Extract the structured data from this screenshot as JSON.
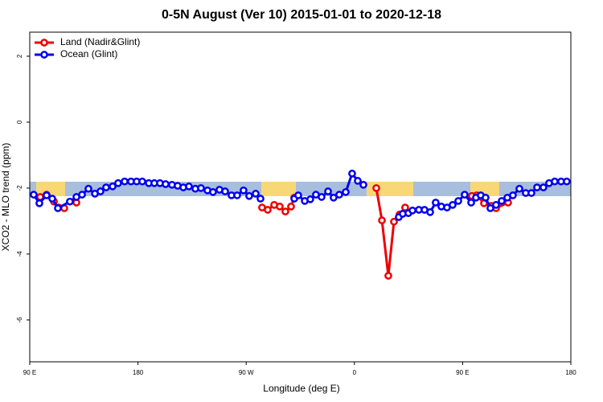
{
  "chart_data": {
    "type": "line",
    "title": "0-5N August (Ver 10)   2015-01-01 to 2020-12-18",
    "x_label": "Longitude (deg E)",
    "y_label": "XCO2 - MLO trend (ppm)",
    "xlim": [
      90,
      540
    ],
    "ylim": [
      -7.27,
      2.73
    ],
    "xticks": [
      {
        "value": 90,
        "label": "90 E"
      },
      {
        "value": 180,
        "label": "180"
      },
      {
        "value": 270,
        "label": "90 W"
      },
      {
        "value": 360,
        "label": "0"
      },
      {
        "value": 450,
        "label": "90 E"
      },
      {
        "value": 540,
        "label": "180"
      }
    ],
    "yticks": [
      2,
      0,
      -2,
      -4,
      -6
    ],
    "legend": "topleft",
    "series": [
      {
        "name": "Land (Nadir&Glint)",
        "color": "#ee0000",
        "x": [
          98.7,
          104.0,
          110.1,
          114.1,
          118.7,
          120,
          128.8,
          200,
          283.2,
          287.9,
          293.3,
          297.9,
          302.6,
          307.3,
          310.0,
          340,
          378.2,
          382.9,
          388.2,
          392.9,
          397.6,
          402.2,
          430,
          457.7,
          461.7,
          467.8,
          473.8,
          477.8,
          487.8
        ],
        "values": [
          -2.27,
          -2.2,
          -2.41,
          -2.59,
          -2.61,
          null,
          -2.44,
          null,
          -2.59,
          -2.66,
          -2.51,
          -2.56,
          -2.71,
          -2.56,
          -2.29,
          null,
          -2.0,
          -2.98,
          -4.66,
          -3.02,
          -2.8,
          -2.59,
          null,
          -2.24,
          -2.22,
          -2.46,
          -2.54,
          -2.61,
          -2.44
        ]
      },
      {
        "name": "Ocean (Glint)",
        "color": "#0000ee",
        "x": [
          93.3,
          98.0,
          104.0,
          108.7,
          113.4,
          123.4,
          128.8,
          133.5,
          138.8,
          144.2,
          148.8,
          153.5,
          158.9,
          163.5,
          168.9,
          174.2,
          178.9,
          183.6,
          189.0,
          193.6,
          198.3,
          203.0,
          208.3,
          213.0,
          217.7,
          222.4,
          227.7,
          232.4,
          237.8,
          242.4,
          247.8,
          252.5,
          257.8,
          262.5,
          267.8,
          272.5,
          277.9,
          281.9,
          300,
          310.0,
          313.3,
          318.7,
          323.3,
          328.0,
          332.7,
          338.1,
          342.7,
          347.4,
          352.8,
          358.1,
          362.8,
          367.5,
          380,
          396.9,
          400.2,
          404.9,
          408.3,
          413.6,
          418.3,
          423.0,
          427.6,
          432.3,
          437.0,
          441.7,
          446.4,
          451.7,
          457.1,
          461.1,
          465.1,
          469.1,
          473.1,
          477.8,
          482.5,
          487.2,
          491.8,
          497.2,
          502.5,
          507.2,
          511.9,
          517.2,
          521.9,
          526.6,
          531.9,
          536.6
        ],
        "values": [
          -2.2,
          -2.46,
          -2.22,
          -2.32,
          -2.61,
          -2.41,
          -2.27,
          -2.2,
          -2.02,
          -2.17,
          -2.1,
          -1.98,
          -1.95,
          -1.85,
          -1.8,
          -1.8,
          -1.8,
          -1.8,
          -1.85,
          -1.85,
          -1.85,
          -1.88,
          -1.9,
          -1.93,
          -1.98,
          -1.95,
          -2.02,
          -2.0,
          -2.07,
          -2.12,
          -2.05,
          -2.1,
          -2.22,
          -2.22,
          -2.07,
          -2.24,
          -2.17,
          -2.32,
          null,
          -2.32,
          -2.22,
          -2.39,
          -2.34,
          -2.2,
          -2.27,
          -2.1,
          -2.29,
          -2.2,
          -2.12,
          -1.56,
          -1.78,
          -1.9,
          null,
          -2.88,
          -2.78,
          -2.76,
          -2.68,
          -2.66,
          -2.66,
          -2.73,
          -2.44,
          -2.56,
          -2.59,
          -2.51,
          -2.39,
          -2.2,
          -2.44,
          -2.29,
          -2.22,
          -2.29,
          -2.61,
          -2.51,
          -2.39,
          -2.29,
          -2.22,
          -2.02,
          -2.15,
          -2.15,
          -1.98,
          -1.98,
          -1.85,
          -1.8,
          -1.8,
          -1.8
        ]
      }
    ]
  }
}
